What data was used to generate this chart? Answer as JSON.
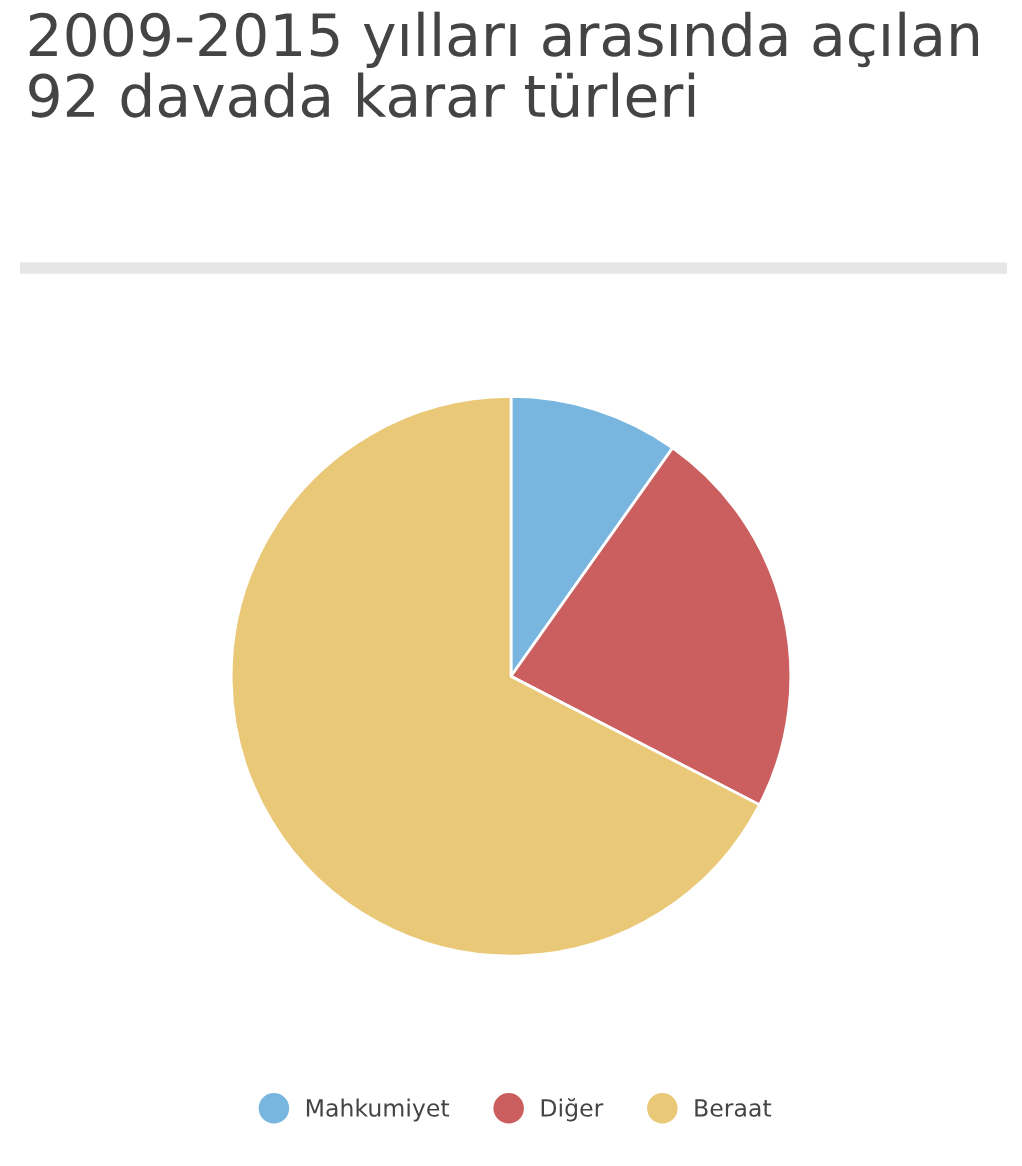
{
  "chart_data": {
    "type": "pie",
    "title": "2009-2015 yılları arasında açılan 92 davada karar türleri",
    "categories": [
      "Mahkumiyet",
      "Diğer",
      "Beraat"
    ],
    "values": [
      9.8,
      22.8,
      67.4
    ],
    "colors": [
      "#78b6e0",
      "#cb5e5e",
      "#e9c877"
    ],
    "legend": "bottom"
  }
}
